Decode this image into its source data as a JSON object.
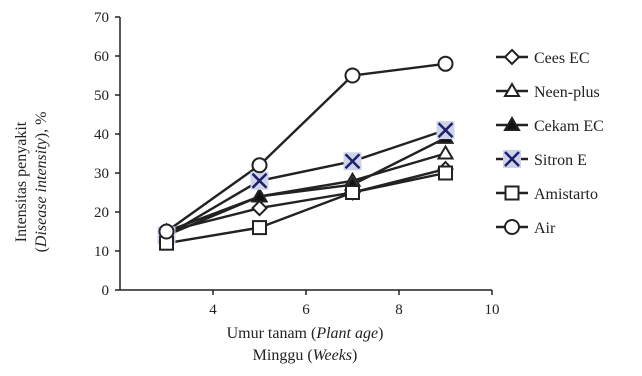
{
  "chart_data": {
    "type": "line",
    "x": [
      3,
      5,
      7,
      9
    ],
    "xlim": [
      2,
      10
    ],
    "ylim": [
      0,
      70
    ],
    "xticks": [
      "4",
      "6",
      "8",
      "10"
    ],
    "yticks": [
      "0",
      "10",
      "20",
      "30",
      "40",
      "50",
      "60",
      "70"
    ],
    "xlabel": {
      "line1_plain": "Umur tanam (",
      "line1_italic": "Plant age",
      "line1_close": ")",
      "line2_plain": "Minggu (",
      "line2_italic": "Weeks",
      "line2_close": ")"
    },
    "ylabel": {
      "line1": "Intensitas penyakit",
      "line2_open": "(",
      "line2_italic": "Disease intensity",
      "line2_close": "), %"
    },
    "grid": false,
    "legend_position": "right",
    "series": [
      {
        "name": "Cees EC",
        "marker": "diamond-open",
        "values": [
          15,
          21,
          25,
          31
        ]
      },
      {
        "name": "Neen-plus",
        "marker": "triangle-open",
        "values": [
          14,
          24,
          28,
          35
        ]
      },
      {
        "name": "Cekam EC",
        "marker": "triangle-filled",
        "values": [
          15,
          24,
          27,
          39
        ]
      },
      {
        "name": "Sitron E",
        "marker": "x",
        "values": [
          14,
          28,
          33,
          41
        ]
      },
      {
        "name": "Amistarto",
        "marker": "square-open",
        "values": [
          12,
          16,
          25,
          30
        ]
      },
      {
        "name": "Air",
        "marker": "circle-open",
        "values": [
          15,
          32,
          55,
          58
        ]
      }
    ]
  }
}
